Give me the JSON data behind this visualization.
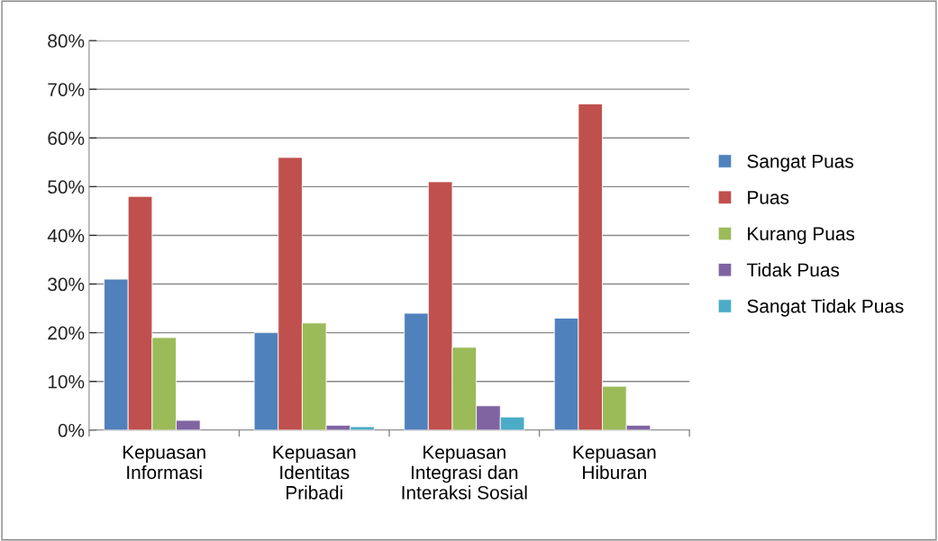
{
  "chart_data": {
    "type": "bar",
    "categories": [
      "Kepuasan\nInformasi",
      "Kepuasan\nIdentitas\nPribadi",
      "Kepuasan\nIntegrasi dan\nInteraksi Sosial",
      "Kepuasan\nHiburan"
    ],
    "series": [
      {
        "name": "Sangat Puas",
        "color": "#4f81bd",
        "values": [
          31,
          20,
          24,
          23
        ]
      },
      {
        "name": "Puas",
        "color": "#c0504d",
        "values": [
          48,
          56,
          51,
          67
        ]
      },
      {
        "name": "Kurang Puas",
        "color": "#9bbb59",
        "values": [
          19,
          22,
          17,
          9
        ]
      },
      {
        "name": "Tidak Puas",
        "color": "#8064a2",
        "values": [
          2,
          1,
          5,
          1
        ]
      },
      {
        "name": "Sangat Tidak Puas",
        "color": "#4bacc6",
        "values": [
          null,
          0.7,
          2.7,
          null
        ]
      }
    ],
    "ylim": [
      0,
      80
    ],
    "yticks": [
      {
        "value": 0,
        "label": "0%"
      },
      {
        "value": 10,
        "label": "10%"
      },
      {
        "value": 20,
        "label": "20%"
      },
      {
        "value": 30,
        "label": "30%"
      },
      {
        "value": 40,
        "label": "40%"
      },
      {
        "value": 50,
        "label": "50%"
      },
      {
        "value": 60,
        "label": "60%"
      },
      {
        "value": 70,
        "label": "70%"
      },
      {
        "value": 80,
        "label": "80%"
      }
    ],
    "grid": "y",
    "legend": "right"
  }
}
